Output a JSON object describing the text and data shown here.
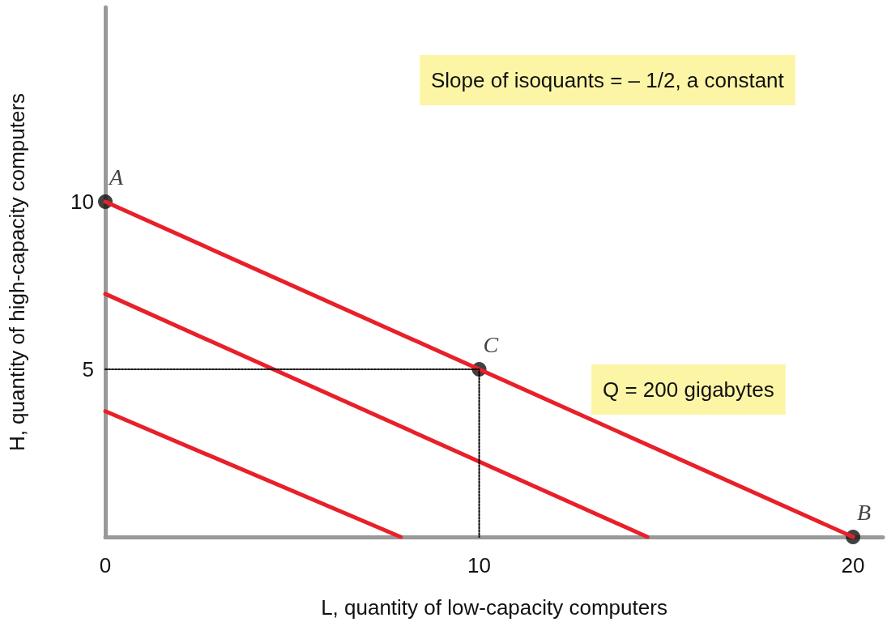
{
  "chart_data": {
    "type": "line",
    "xlabel": "L, quantity of low-capacity computers",
    "ylabel": "H, quantity of high-capacity computers",
    "xlim": [
      0,
      20.8
    ],
    "xticks": [
      0,
      10,
      20
    ],
    "ylim": [
      0,
      15.8
    ],
    "yticks": [
      5,
      10
    ],
    "grid": false,
    "annotations": [
      "Slope of isoquants = – 1/2, a constant",
      "Q = 200 gigabytes"
    ],
    "series": [
      {
        "type": "line",
        "color": "#e8202a",
        "x": [
          0,
          20
        ],
        "values": [
          10,
          0
        ],
        "marker": "none",
        "line_style": "solid"
      },
      {
        "type": "line",
        "color": "#e8202a",
        "x": [
          0,
          14.5
        ],
        "values": [
          7.25,
          0
        ],
        "marker": "none",
        "line_style": "solid"
      },
      {
        "type": "line",
        "color": "#e8202a",
        "x": [
          0,
          7.9
        ],
        "values": [
          3.75,
          0
        ],
        "marker": "none",
        "line_style": "solid"
      },
      {
        "type": "line",
        "color": "#000000",
        "x": [
          0,
          10,
          10
        ],
        "values": [
          5,
          5,
          0
        ],
        "marker": "none",
        "line_style": "dotted"
      },
      {
        "type": "scatter",
        "color": "#111111",
        "x": [
          0,
          20,
          10
        ],
        "values": [
          10,
          0,
          5
        ],
        "marker": "circle",
        "value_labels": [
          "A",
          "B",
          "C"
        ]
      }
    ]
  }
}
